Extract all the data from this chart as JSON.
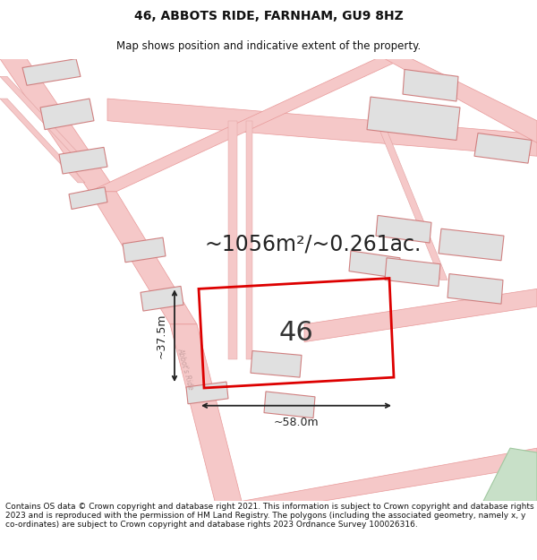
{
  "title": "46, ABBOTS RIDE, FARNHAM, GU9 8HZ",
  "subtitle": "Map shows position and indicative extent of the property.",
  "area_text": "~1056m²/~0.261ac.",
  "property_number": "46",
  "width_label": "~58.0m",
  "height_label": "~37.5m",
  "footer_text": "Contains OS data © Crown copyright and database right 2021. This information is subject to Crown copyright and database rights 2023 and is reproduced with the permission of HM Land Registry. The polygons (including the associated geometry, namely x, y co-ordinates) are subject to Crown copyright and database rights 2023 Ordnance Survey 100026316.",
  "bg_color": "#ffffff",
  "map_bg": "#ffffff",
  "road_color": "#f5c8c8",
  "road_edge": "#e89898",
  "building_fill": "#e0e0e0",
  "building_edge": "#d08080",
  "green_fill": "#c8e0c8",
  "green_edge": "#a0c8a0",
  "property_edge": "#dd0000",
  "title_fontsize": 10,
  "subtitle_fontsize": 8.5,
  "area_fontsize": 17,
  "number_fontsize": 22,
  "label_fontsize": 9,
  "footer_fontsize": 6.5,
  "road_label_color": "#c8a0a0",
  "road_label_size": 5.5
}
